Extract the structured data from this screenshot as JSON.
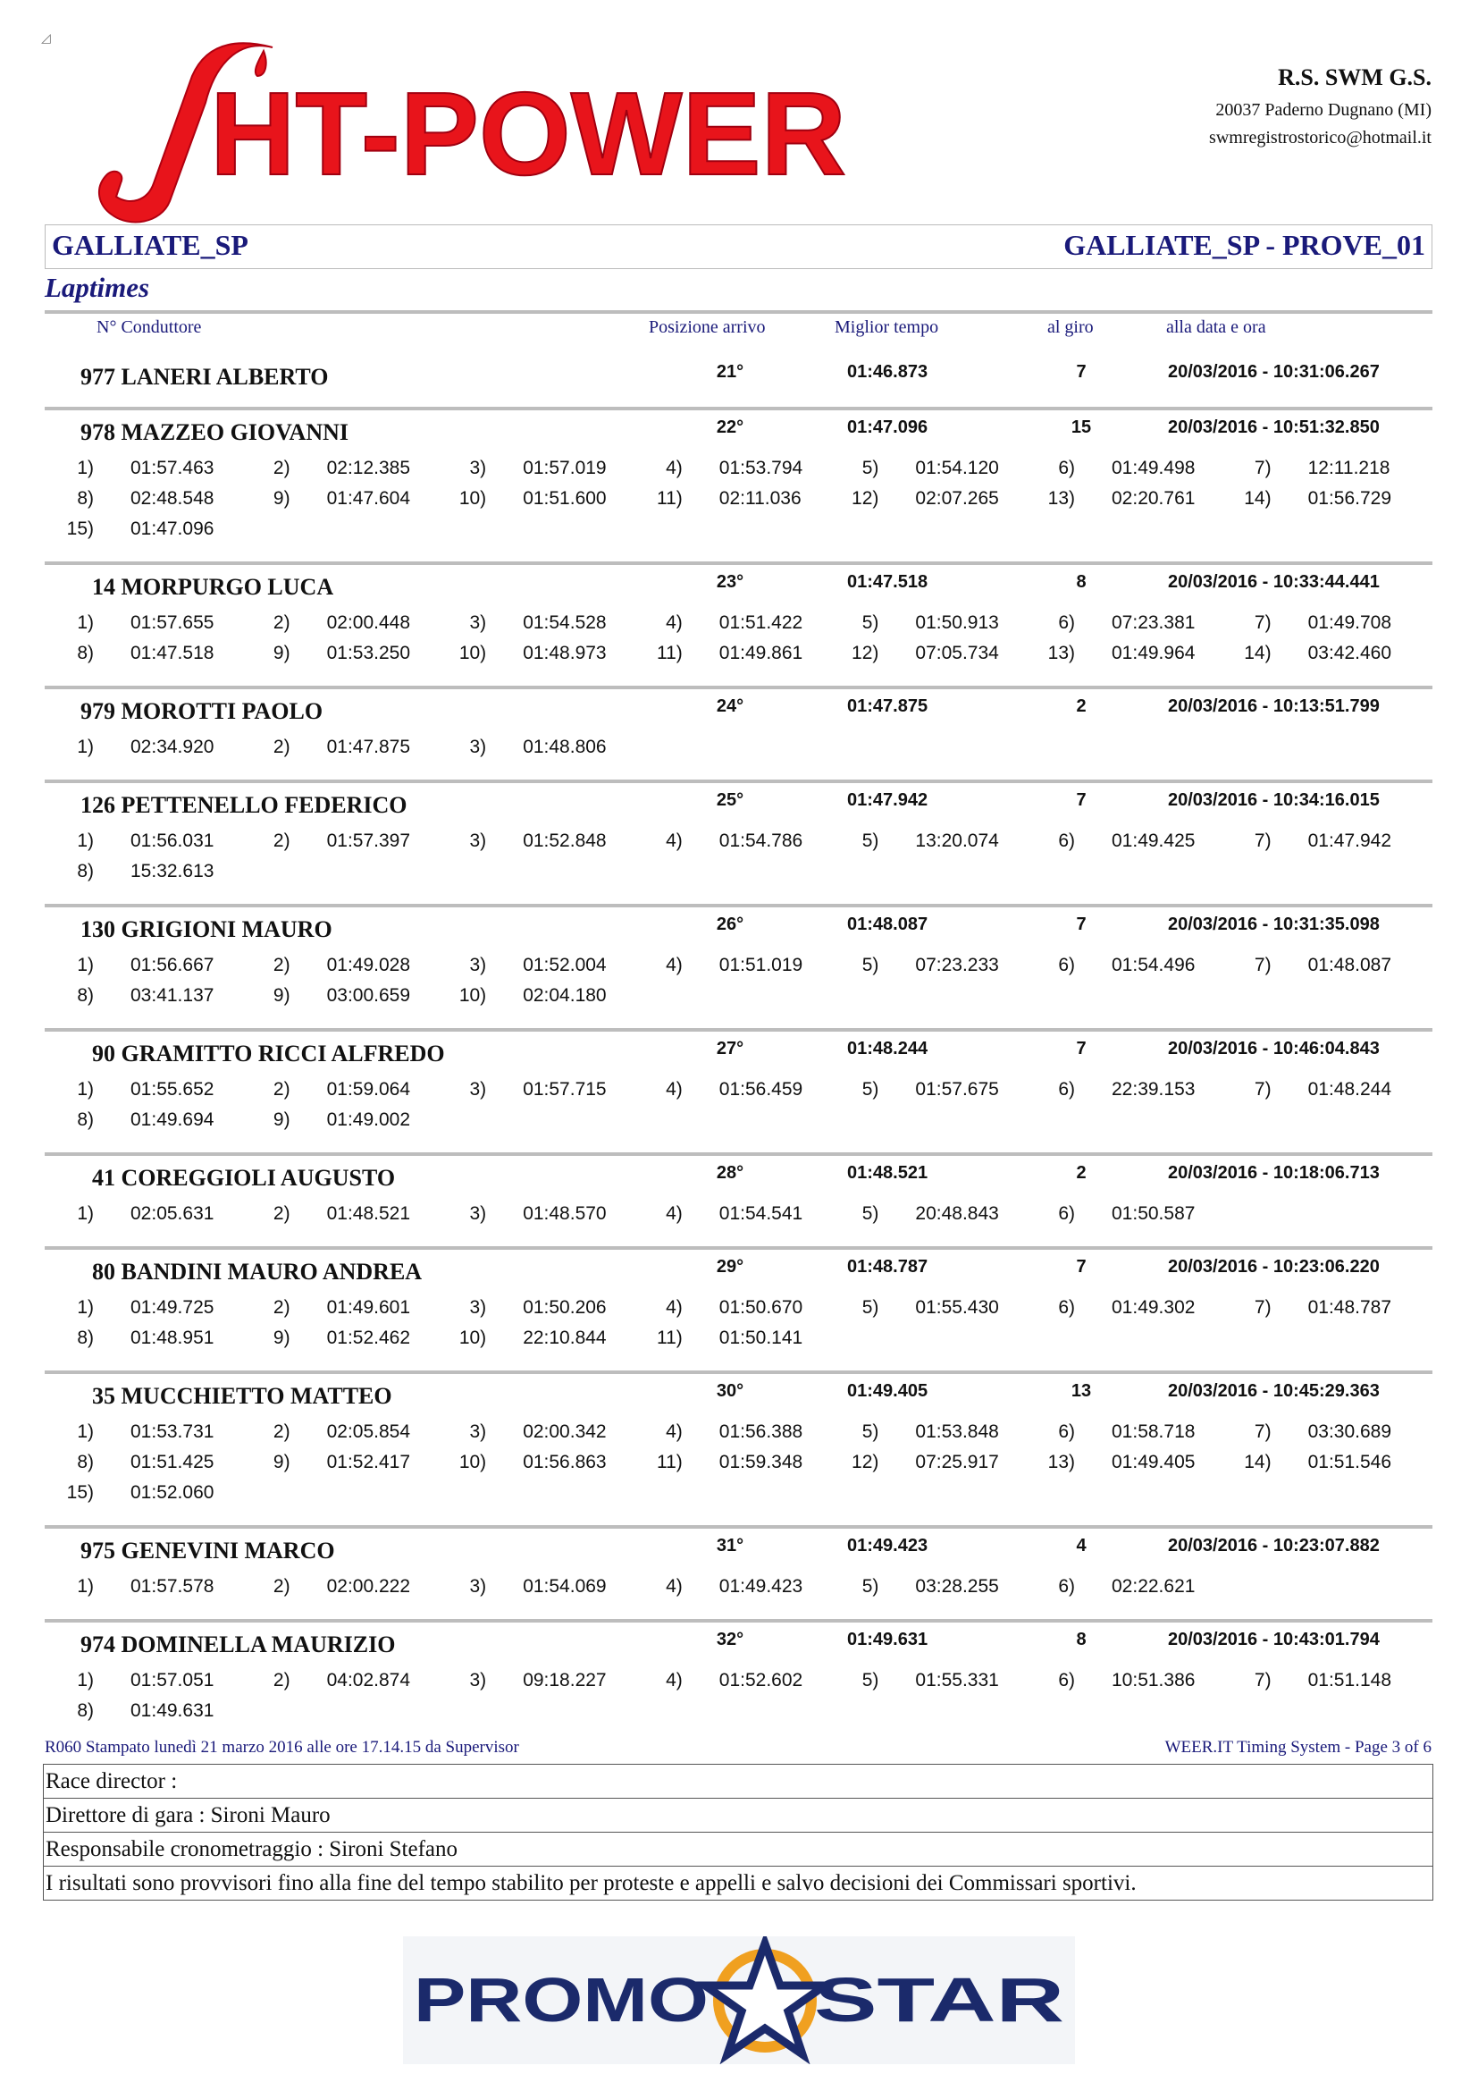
{
  "logo": {
    "text": "ƒHT-POWER",
    "color": "#e8141b"
  },
  "organizer": {
    "name": "R.S. SWM G.S.",
    "address": "20037 Paderno Dugnano (MI)",
    "email": "swmregistrostorico@hotmail.it"
  },
  "event": {
    "left": "GALLIATE_SP",
    "right": "GALLIATE_SP - PROVE_01"
  },
  "section_title": "Laptimes",
  "columns": {
    "driver": "N° Conduttore",
    "position": "Posizione arrivo",
    "best": "Miglior tempo",
    "lap": "al giro",
    "datetime": "alla data e ora"
  },
  "drivers": [
    {
      "name": "977 LANERI ALBERTO",
      "position": "21°",
      "best": "01:46.873",
      "lap": "7",
      "datetime": "20/03/2016 - 10:31:06.267",
      "laps": []
    },
    {
      "name": "978 MAZZEO GIOVANNI",
      "position": "22°",
      "best": "01:47.096",
      "lap": "15",
      "datetime": "20/03/2016 - 10:51:32.850",
      "laps": [
        "01:57.463",
        "02:12.385",
        "01:57.019",
        "01:53.794",
        "01:54.120",
        "01:49.498",
        "12:11.218",
        "02:48.548",
        "01:47.604",
        "01:51.600",
        "02:11.036",
        "02:07.265",
        "02:20.761",
        "01:56.729",
        "01:47.096"
      ]
    },
    {
      "name": "14 MORPURGO LUCA",
      "position": "23°",
      "best": "01:47.518",
      "lap": "8",
      "datetime": "20/03/2016 - 10:33:44.441",
      "laps": [
        "01:57.655",
        "02:00.448",
        "01:54.528",
        "01:51.422",
        "01:50.913",
        "07:23.381",
        "01:49.708",
        "01:47.518",
        "01:53.250",
        "01:48.973",
        "01:49.861",
        "07:05.734",
        "01:49.964",
        "03:42.460"
      ]
    },
    {
      "name": "979 MOROTTI PAOLO",
      "position": "24°",
      "best": "01:47.875",
      "lap": "2",
      "datetime": "20/03/2016 - 10:13:51.799",
      "laps": [
        "02:34.920",
        "01:47.875",
        "01:48.806"
      ]
    },
    {
      "name": "126 PETTENELLO FEDERICO",
      "position": "25°",
      "best": "01:47.942",
      "lap": "7",
      "datetime": "20/03/2016 - 10:34:16.015",
      "laps": [
        "01:56.031",
        "01:57.397",
        "01:52.848",
        "01:54.786",
        "13:20.074",
        "01:49.425",
        "01:47.942",
        "15:32.613"
      ]
    },
    {
      "name": "130 GRIGIONI MAURO",
      "position": "26°",
      "best": "01:48.087",
      "lap": "7",
      "datetime": "20/03/2016 - 10:31:35.098",
      "laps": [
        "01:56.667",
        "01:49.028",
        "01:52.004",
        "01:51.019",
        "07:23.233",
        "01:54.496",
        "01:48.087",
        "03:41.137",
        "03:00.659",
        "02:04.180"
      ]
    },
    {
      "name": "90 GRAMITTO RICCI ALFREDO",
      "position": "27°",
      "best": "01:48.244",
      "lap": "7",
      "datetime": "20/03/2016 - 10:46:04.843",
      "laps": [
        "01:55.652",
        "01:59.064",
        "01:57.715",
        "01:56.459",
        "01:57.675",
        "22:39.153",
        "01:48.244",
        "01:49.694",
        "01:49.002"
      ]
    },
    {
      "name": "41 COREGGIOLI AUGUSTO",
      "position": "28°",
      "best": "01:48.521",
      "lap": "2",
      "datetime": "20/03/2016 - 10:18:06.713",
      "laps": [
        "02:05.631",
        "01:48.521",
        "01:48.570",
        "01:54.541",
        "20:48.843",
        "01:50.587"
      ]
    },
    {
      "name": "80 BANDINI MAURO ANDREA",
      "position": "29°",
      "best": "01:48.787",
      "lap": "7",
      "datetime": "20/03/2016 - 10:23:06.220",
      "laps": [
        "01:49.725",
        "01:49.601",
        "01:50.206",
        "01:50.670",
        "01:55.430",
        "01:49.302",
        "01:48.787",
        "01:48.951",
        "01:52.462",
        "22:10.844",
        "01:50.141"
      ]
    },
    {
      "name": "35 MUCCHIETTO MATTEO",
      "position": "30°",
      "best": "01:49.405",
      "lap": "13",
      "datetime": "20/03/2016 - 10:45:29.363",
      "laps": [
        "01:53.731",
        "02:05.854",
        "02:00.342",
        "01:56.388",
        "01:53.848",
        "01:58.718",
        "03:30.689",
        "01:51.425",
        "01:52.417",
        "01:56.863",
        "01:59.348",
        "07:25.917",
        "01:49.405",
        "01:51.546",
        "01:52.060"
      ]
    },
    {
      "name": "975 GENEVINI MARCO",
      "position": "31°",
      "best": "01:49.423",
      "lap": "4",
      "datetime": "20/03/2016 - 10:23:07.882",
      "laps": [
        "01:57.578",
        "02:00.222",
        "01:54.069",
        "01:49.423",
        "03:28.255",
        "02:22.621"
      ]
    },
    {
      "name": "974 DOMINELLA MAURIZIO",
      "position": "32°",
      "best": "01:49.631",
      "lap": "8",
      "datetime": "20/03/2016 - 10:43:01.794",
      "laps": [
        "01:57.051",
        "04:02.874",
        "09:18.227",
        "01:52.602",
        "01:55.331",
        "10:51.386",
        "01:51.148",
        "01:49.631"
      ]
    }
  ],
  "footer": {
    "print_info": "R060  Stampato lunedì 21 marzo 2016 alle ore 17.14.15     da Supervisor",
    "system_info": "WEER.IT   Timing System - Page 3 of  6",
    "rows": [
      "Race director :",
      "Direttore di gara : Sironi Mauro",
      "Responsabile cronometraggio : Sironi Stefano",
      "I risultati sono provvisori fino alla fine del tempo stabilito per proteste e appelli e salvo decisioni dei Commissari sportivi."
    ]
  },
  "sponsor": {
    "left": "PROMO",
    "right": "STAR",
    "navy": "#1b2a6b",
    "orange": "#f0a020"
  }
}
